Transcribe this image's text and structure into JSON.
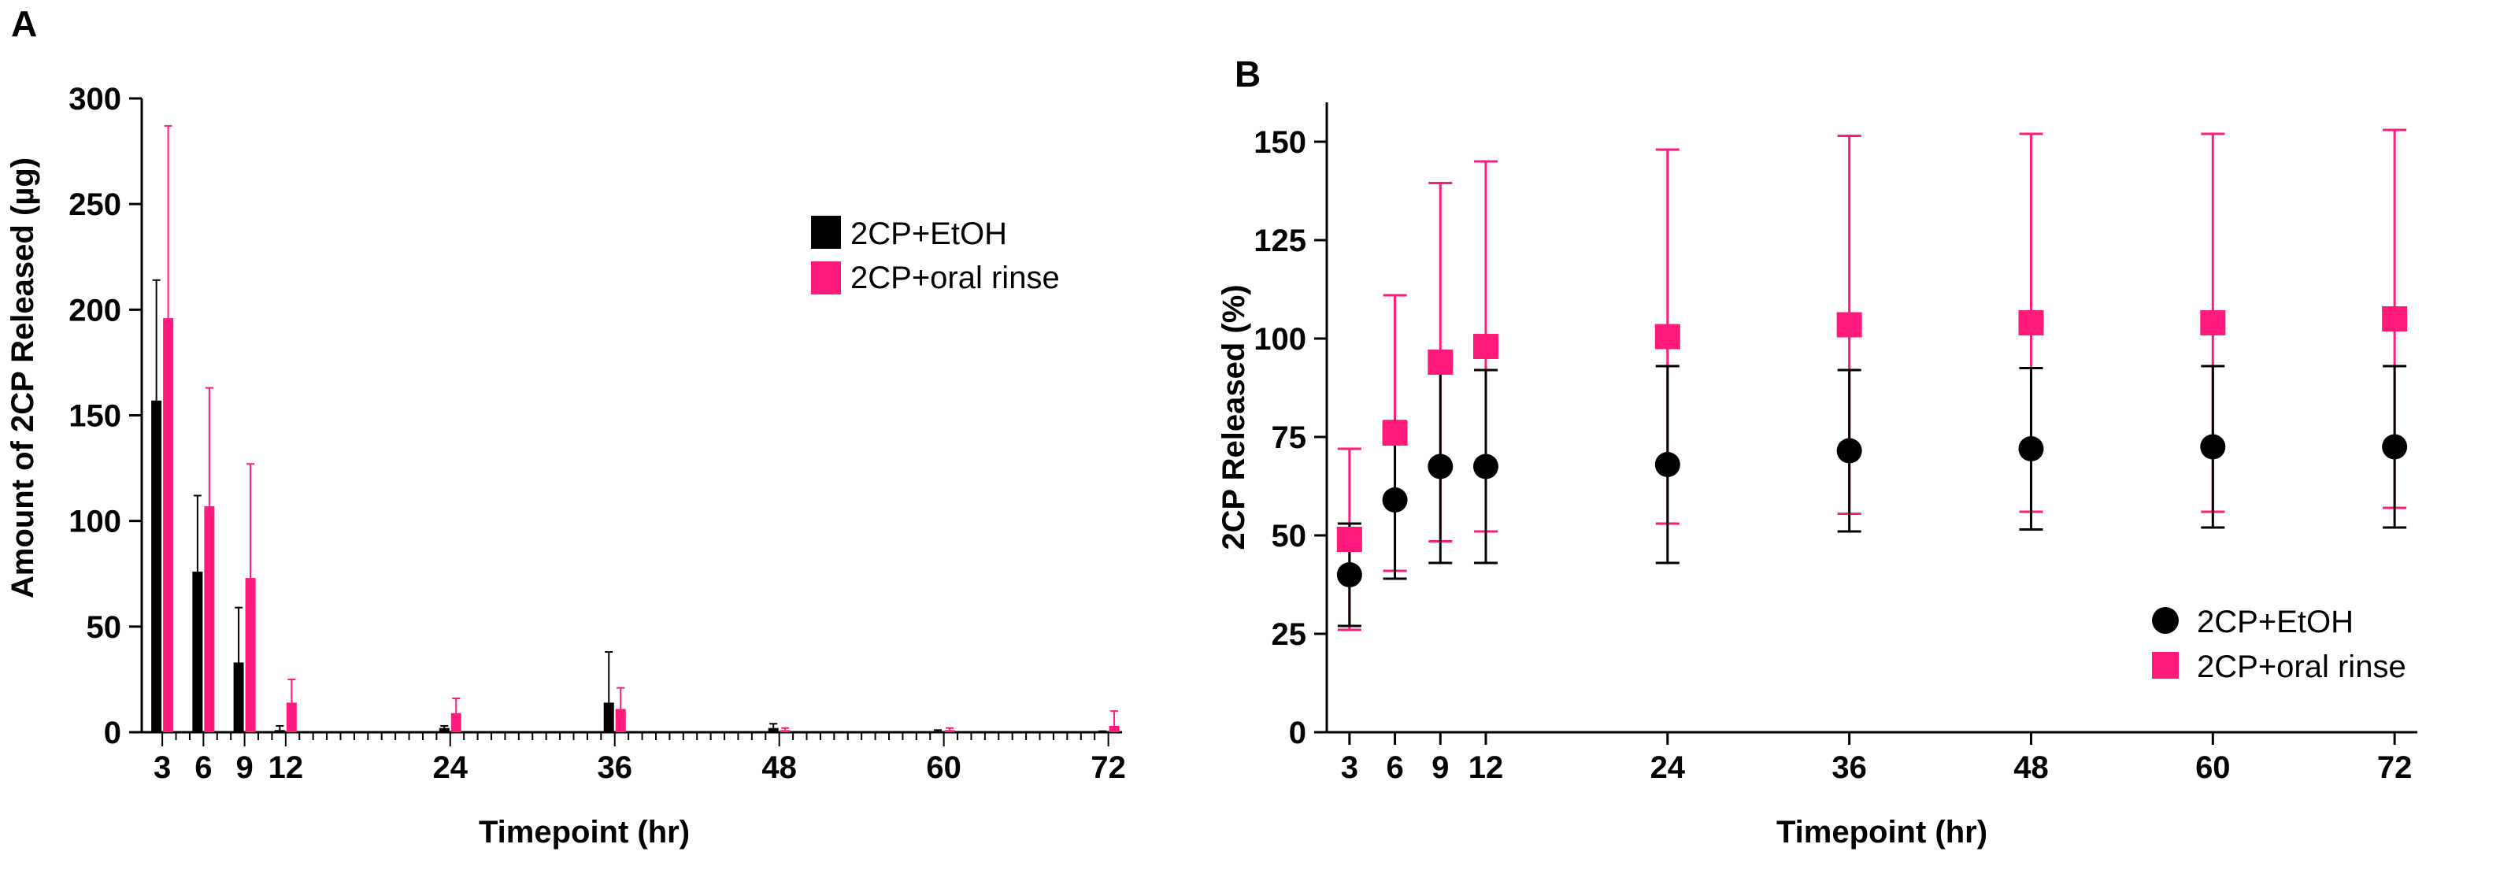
{
  "colors": {
    "ethanol": "#000000",
    "oral_rinse": "#ff1a7c",
    "axis": "#000000"
  },
  "chart_data": [
    {
      "panel": "A",
      "type": "bar",
      "xlabel": "Timepoint (hr)",
      "ylabel": "Amount of 2CP Released (µg)",
      "ylim": [
        0,
        300
      ],
      "yticks": [
        0,
        50,
        100,
        150,
        200,
        250,
        300
      ],
      "xlim": [
        1.5,
        73
      ],
      "xticks": [
        3,
        6,
        9,
        12,
        24,
        36,
        48,
        60,
        72
      ],
      "legend": {
        "position": "top-right",
        "entries": [
          "2CP+EtOH",
          "2CP+oral rinse"
        ]
      },
      "series": [
        {
          "name": "2CP+EtOH",
          "color": "#000000",
          "x": [
            3,
            6,
            9,
            12,
            24,
            36,
            48,
            60,
            72
          ],
          "values": [
            157,
            76,
            33,
            1,
            2,
            14,
            2,
            0.5,
            0.2
          ],
          "error": [
            57,
            36,
            26,
            2,
            1,
            24,
            2,
            0.5,
            0.3
          ]
        },
        {
          "name": "2CP+oral rinse",
          "color": "#ff1a7c",
          "x": [
            3,
            6,
            9,
            12,
            24,
            36,
            48,
            60,
            72
          ],
          "values": [
            196,
            107,
            73,
            14,
            9,
            11,
            1,
            1,
            3
          ],
          "error": [
            91,
            56,
            54,
            11,
            7,
            10,
            1,
            1,
            7
          ]
        }
      ]
    },
    {
      "panel": "B",
      "type": "scatter",
      "xlabel": "Timepoint (hr)",
      "ylabel": "2CP Released (%)",
      "ylim": [
        0,
        160
      ],
      "yticks": [
        0,
        25,
        50,
        75,
        100,
        125,
        150
      ],
      "xlim": [
        1.5,
        73.5
      ],
      "xticks": [
        3,
        6,
        9,
        12,
        24,
        36,
        48,
        60,
        72
      ],
      "legend": {
        "position": "bottom-right",
        "entries": [
          "2CP+EtOH",
          "2CP+oral rinse"
        ]
      },
      "series": [
        {
          "name": "2CP+EtOH",
          "color": "#000000",
          "marker": "circle",
          "x": [
            3,
            6,
            9,
            12,
            24,
            36,
            48,
            60,
            72
          ],
          "values": [
            40,
            59,
            67.5,
            67.5,
            68,
            71.5,
            72,
            72.5,
            72.5
          ],
          "error": [
            13,
            20,
            24.5,
            24.5,
            25,
            20.5,
            20.5,
            20.5,
            20.5
          ]
        },
        {
          "name": "2CP+oral rinse",
          "color": "#ff1a7c",
          "marker": "square",
          "x": [
            3,
            6,
            9,
            12,
            24,
            36,
            48,
            60,
            72
          ],
          "values": [
            49,
            76,
            94,
            98,
            100.5,
            103.5,
            104,
            104,
            105
          ],
          "error": [
            23,
            35,
            45.5,
            47,
            47.5,
            48,
            48,
            48,
            48
          ]
        }
      ]
    }
  ],
  "labels": {
    "panelA": {
      "letter": "A",
      "xlabel": "Timepoint (hr)",
      "ylabel": "Amount of 2CP Released (µg)",
      "legend1": "2CP+EtOH",
      "legend2": "2CP+oral rinse"
    },
    "panelB": {
      "letter": "B",
      "xlabel": "Timepoint (hr)",
      "ylabel": "2CP Released (%)",
      "legend1": "2CP+EtOH",
      "legend2": "2CP+oral rinse"
    }
  }
}
